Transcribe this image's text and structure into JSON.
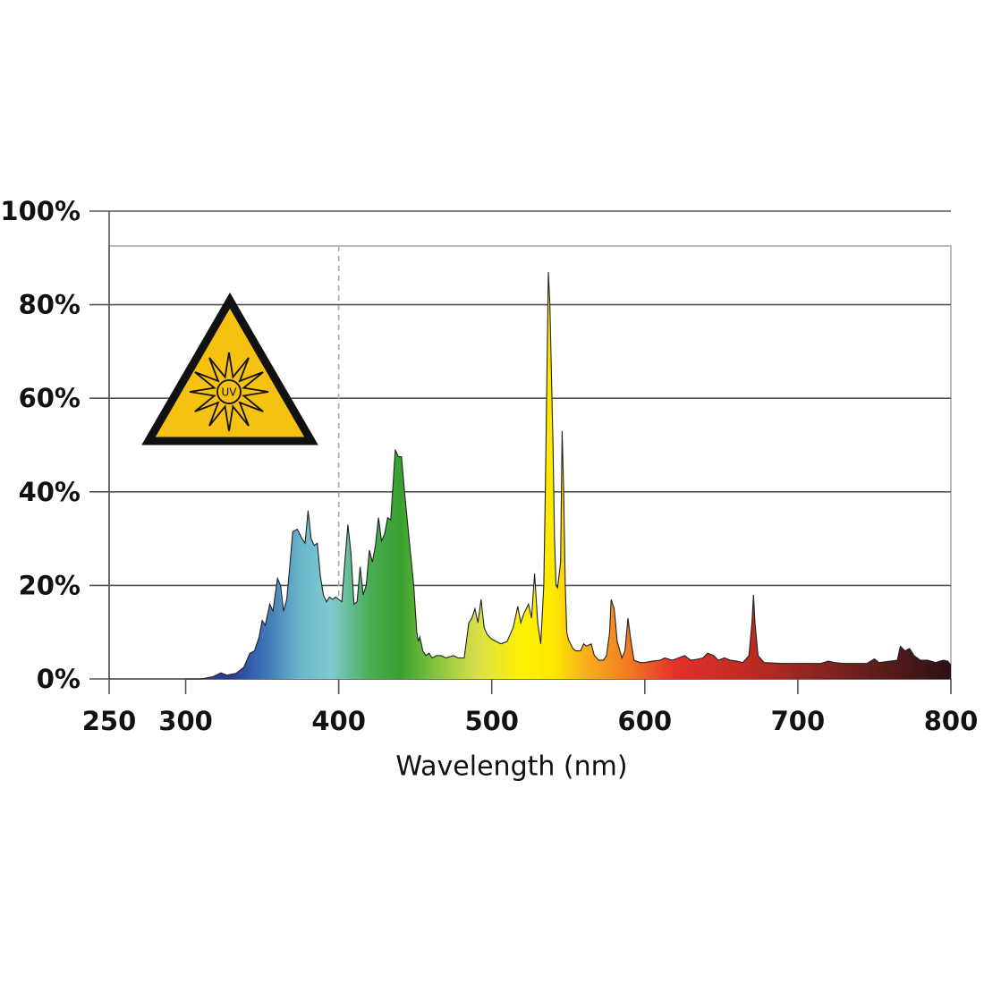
{
  "chart_data": {
    "type": "area",
    "x_label": "Wavelength (nm)",
    "icon_label": "UV",
    "reference_line_x": 400,
    "xlim": [
      250,
      800
    ],
    "xticks": [
      250,
      300,
      400,
      500,
      600,
      700,
      800
    ],
    "ylim": [
      0,
      100
    ],
    "yticks": [
      {
        "value": 0,
        "label": "0%"
      },
      {
        "value": 20,
        "label": "20%"
      },
      {
        "value": 40,
        "label": "40%"
      },
      {
        "value": 60,
        "label": "60%"
      },
      {
        "value": 80,
        "label": "80%"
      },
      {
        "value": 100,
        "label": "100%"
      }
    ],
    "grid": true,
    "line_color": "#222222",
    "gradient_stops": [
      {
        "x": 330,
        "color": "#2b3e97"
      },
      {
        "x": 350,
        "color": "#3a6fb5"
      },
      {
        "x": 375,
        "color": "#6ab7cc"
      },
      {
        "x": 395,
        "color": "#7fcad0"
      },
      {
        "x": 420,
        "color": "#4aae55"
      },
      {
        "x": 440,
        "color": "#36a02e"
      },
      {
        "x": 465,
        "color": "#8bc63f"
      },
      {
        "x": 490,
        "color": "#d8df4a"
      },
      {
        "x": 520,
        "color": "#fff200"
      },
      {
        "x": 540,
        "color": "#fde900"
      },
      {
        "x": 560,
        "color": "#f7b21b"
      },
      {
        "x": 590,
        "color": "#f07a22"
      },
      {
        "x": 620,
        "color": "#e3302a"
      },
      {
        "x": 680,
        "color": "#b32a23"
      },
      {
        "x": 740,
        "color": "#6b1f1c"
      },
      {
        "x": 800,
        "color": "#2b1213"
      }
    ],
    "x": [
      300,
      310,
      318,
      323,
      327,
      333,
      338,
      342,
      345,
      348,
      350,
      352,
      355,
      357,
      360,
      362,
      364,
      366,
      368,
      370,
      373,
      376,
      378,
      380,
      382,
      384,
      386,
      388,
      390,
      392,
      394,
      396,
      398,
      400,
      402,
      404,
      406,
      408,
      410,
      412,
      414,
      416,
      418,
      420,
      422,
      424,
      426,
      428,
      430,
      432,
      434,
      436,
      437,
      439,
      441,
      443,
      446,
      449,
      451,
      452,
      453,
      455,
      457,
      459,
      461,
      464,
      467,
      470,
      475,
      478,
      482,
      485,
      487,
      489,
      491,
      493,
      495,
      497,
      500,
      503,
      506,
      510,
      514,
      517,
      519,
      521,
      524,
      526,
      528,
      530,
      532,
      534,
      535,
      537,
      538,
      540,
      541,
      542,
      543,
      545,
      546,
      547,
      548,
      549,
      550,
      553,
      555,
      558,
      560,
      562,
      565,
      567,
      570,
      573,
      575,
      577,
      578,
      580,
      582,
      585,
      587,
      589,
      591,
      593,
      597,
      600,
      605,
      610,
      613,
      618,
      622,
      626,
      630,
      634,
      638,
      641,
      645,
      648,
      652,
      656,
      660,
      664,
      668,
      670,
      671,
      672,
      674,
      678,
      690,
      700,
      715,
      720,
      724,
      730,
      745,
      750,
      753,
      765,
      767,
      770,
      773,
      776,
      780,
      785,
      790,
      795,
      798,
      800
    ],
    "values": [
      0,
      0,
      0.5,
      1.3,
      0.8,
      1.2,
      2.5,
      5.5,
      6,
      9,
      12.5,
      11.5,
      16,
      14.5,
      21.5,
      20,
      14.5,
      17,
      24,
      31.5,
      32,
      30,
      29,
      36,
      30,
      28.5,
      29,
      22,
      18,
      16.5,
      17.5,
      17,
      17.5,
      17,
      16.5,
      25,
      33,
      27,
      16,
      16.5,
      24,
      18,
      20,
      27.5,
      25,
      28.5,
      34.5,
      29.5,
      31,
      34.5,
      34,
      44,
      49,
      47.5,
      47.5,
      40,
      30,
      20,
      10,
      8,
      9,
      6,
      5,
      5.5,
      4.5,
      5,
      5,
      4.5,
      5,
      4.5,
      4.5,
      12,
      13,
      15,
      12,
      17,
      11,
      9.5,
      8.5,
      8,
      7.5,
      8,
      11,
      15.5,
      12,
      14,
      16,
      13,
      22.5,
      12,
      7.5,
      20,
      40,
      87,
      80,
      50,
      30,
      20,
      19.5,
      25,
      53,
      40,
      20,
      10,
      8.5,
      6.5,
      6,
      6,
      7.5,
      7,
      7.5,
      5,
      4,
      4,
      5,
      10,
      17,
      15,
      8,
      4.5,
      6,
      13,
      8,
      4,
      3.5,
      3.5,
      3.8,
      4,
      4.5,
      4,
      4.5,
      5,
      4,
      4.2,
      4.5,
      5.5,
      5,
      4,
      4.5,
      4,
      3.8,
      3.5,
      5,
      12,
      18,
      12,
      5,
      3.5,
      3.3,
      3.3,
      3.3,
      3.8,
      3.5,
      3.3,
      3.3,
      4.3,
      3.5,
      4,
      7,
      6,
      6.5,
      5,
      4,
      4,
      3.5,
      4,
      3.8,
      3
    ]
  }
}
